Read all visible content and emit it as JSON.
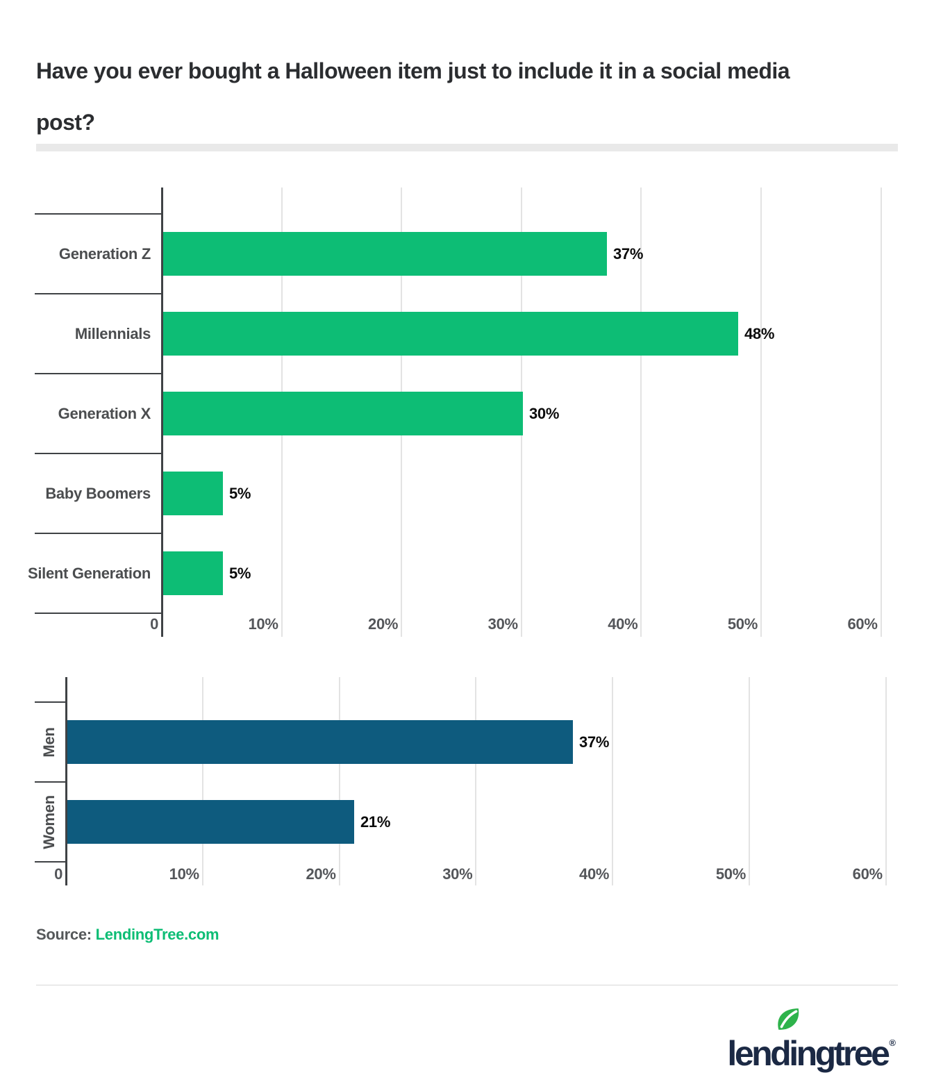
{
  "title": {
    "line1": "Have you ever bought a Halloween item just to include it in a social media",
    "line2": "post?"
  },
  "source": {
    "label": "Source: ",
    "link": "LendingTree.com"
  },
  "logo": {
    "wordmark": "lendingtree",
    "registered": "®",
    "leaf_icon": "leaf-icon"
  },
  "colors": {
    "bar_green": "#0dbd75",
    "bar_blue": "#0e5b7e",
    "axis": "#3f4245",
    "gridline": "#e3e3e3",
    "title_text": "#2b2d30",
    "category_label": "#4b4d4f",
    "tick_label": "#54565a",
    "value_label": "#0b0b0b",
    "link_green": "#0dbd75",
    "logo_navy": "#1b2944",
    "logo_leaf_green": "#2eb34b",
    "title_divider": "#e9e9e9",
    "bottom_rule": "#d8d8d8"
  },
  "chart_data": [
    {
      "type": "bar",
      "orientation": "horizontal",
      "name": "by-generation",
      "categories": [
        "Generation Z",
        "Millennials",
        "Generation X",
        "Baby Boomers",
        "Silent Generation"
      ],
      "values": [
        37,
        48,
        30,
        5,
        5
      ],
      "value_labels": [
        "37%",
        "48%",
        "30%",
        "5%",
        "5%"
      ],
      "x_ticks": [
        "0",
        "10%",
        "20%",
        "30%",
        "40%",
        "50%",
        "60%"
      ],
      "xlim": [
        0,
        60
      ],
      "bar_color": "#0dbd75",
      "grid": true,
      "legend": "none",
      "category_label_style": "horizontal"
    },
    {
      "type": "bar",
      "orientation": "horizontal",
      "name": "by-gender",
      "categories": [
        "Men",
        "Women"
      ],
      "values": [
        37,
        21
      ],
      "value_labels": [
        "37%",
        "21%"
      ],
      "x_ticks": [
        "0",
        "10%",
        "20%",
        "30%",
        "40%",
        "50%",
        "60%"
      ],
      "xlim": [
        0,
        60
      ],
      "bar_color": "#0e5b7e",
      "grid": true,
      "legend": "none",
      "category_label_style": "vertical"
    }
  ]
}
